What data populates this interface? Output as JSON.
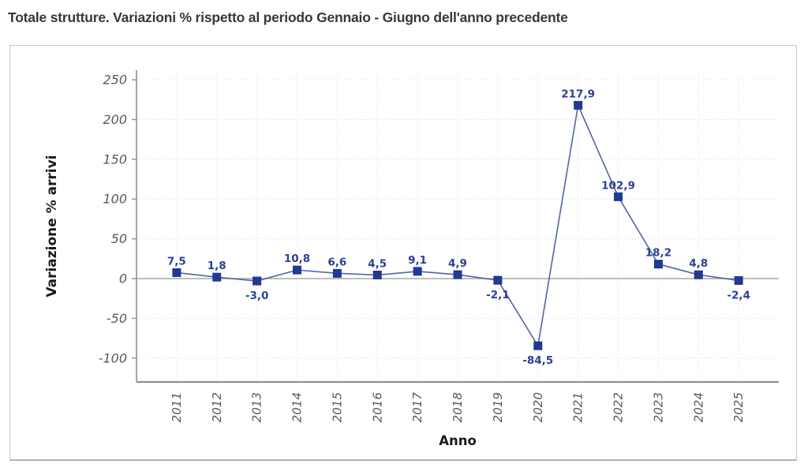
{
  "page_title": "Totale strutture. Variazioni % rispetto al periodo Gennaio - Giugno dell'anno precedente",
  "chart_data": {
    "type": "line",
    "title": "Totale strutture. Variazioni % rispetto al periodo Gennaio - Giugno dell'anno precedente",
    "xlabel": "Anno",
    "ylabel": "Variazione % arrivi",
    "categories": [
      "2011",
      "2012",
      "2013",
      "2014",
      "2015",
      "2016",
      "2017",
      "2018",
      "2019",
      "2020",
      "2021",
      "2022",
      "2023",
      "2024",
      "2025"
    ],
    "values": [
      7.5,
      1.8,
      -3.0,
      10.8,
      6.6,
      4.5,
      9.1,
      4.9,
      -2.1,
      -84.5,
      217.9,
      102.9,
      18.2,
      4.8,
      -2.4
    ],
    "value_labels": [
      "7,5",
      "1,8",
      "-3,0",
      "10,8",
      "6,6",
      "4,5",
      "9,1",
      "4,9",
      "-2,1",
      "-84,5",
      "217,9",
      "102,9",
      "18,2",
      "4,8",
      "-2,4"
    ],
    "y_ticks": [
      250,
      200,
      150,
      100,
      50,
      0,
      -50,
      -100
    ],
    "y_tick_labels": [
      "250",
      "200",
      "150",
      "100",
      "50",
      "0",
      "-50",
      "-100"
    ],
    "ylim": [
      -130,
      262
    ],
    "grid": true,
    "legend": false,
    "marker": "square",
    "colors": {
      "marker": "#21398f",
      "line": "#5264a8",
      "value_label": "#2d4094",
      "grid": "#dadada",
      "zero_line": "#a8a8a8",
      "axis": "#909090",
      "tick_text": "#595959",
      "axis_title_text": "#1a1a1a",
      "title_text": "#383838",
      "frame_border": "#c6c6c6"
    }
  }
}
